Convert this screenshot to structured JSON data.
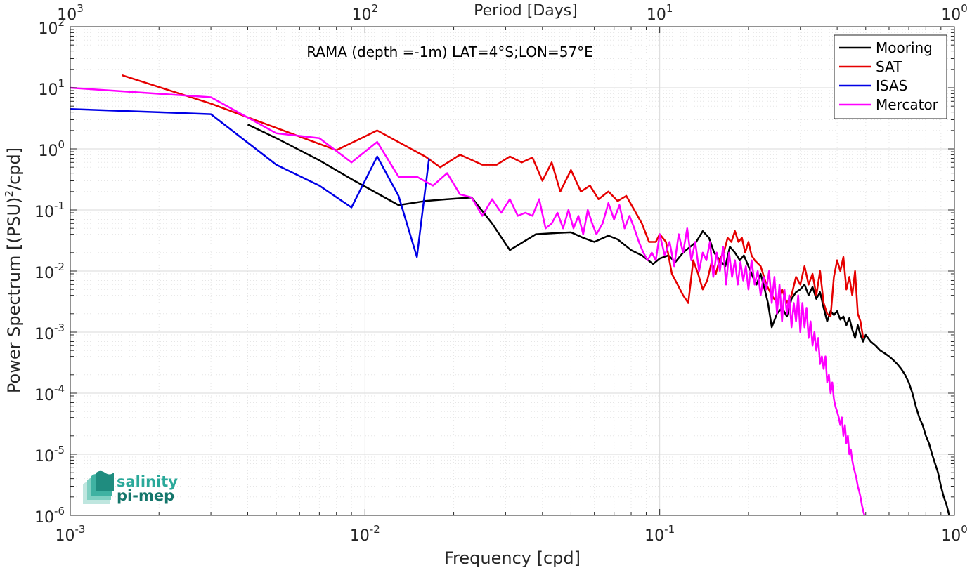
{
  "chart_data": {
    "type": "line",
    "title": "RAMA (depth =-1m) LAT=4°S;LON=57°E",
    "xlabel": "Frequency [cpd]",
    "ylabel_main": "Power Spectrum [(PSU)",
    "ylabel_exp": "2",
    "ylabel_tail": "/cpd]",
    "top_xlabel": "Period [Days]",
    "xscale": "log",
    "yscale": "log",
    "xlim": [
      0.001,
      1
    ],
    "ylim": [
      1e-06,
      100
    ],
    "grid": true,
    "legend_position": "top-right",
    "x_ticks": [
      {
        "base": "10",
        "exp": "-3"
      },
      {
        "base": "10",
        "exp": "-2"
      },
      {
        "base": "10",
        "exp": "-1"
      },
      {
        "base": "10",
        "exp": "0"
      }
    ],
    "top_ticks": [
      {
        "base": "10",
        "exp": "3"
      },
      {
        "base": "10",
        "exp": "2"
      },
      {
        "base": "10",
        "exp": "1"
      },
      {
        "base": "10",
        "exp": "0"
      }
    ],
    "y_ticks": [
      {
        "base": "10",
        "exp": "2"
      },
      {
        "base": "10",
        "exp": "1"
      },
      {
        "base": "10",
        "exp": "0"
      },
      {
        "base": "10",
        "exp": "-1"
      },
      {
        "base": "10",
        "exp": "-2"
      },
      {
        "base": "10",
        "exp": "-3"
      },
      {
        "base": "10",
        "exp": "-4"
      },
      {
        "base": "10",
        "exp": "-5"
      },
      {
        "base": "10",
        "exp": "-6"
      }
    ],
    "series": [
      {
        "name": "Mooring",
        "color": "#000000",
        "x": [
          0.004,
          0.005,
          0.007,
          0.009,
          0.013,
          0.016,
          0.019,
          0.023,
          0.027,
          0.031,
          0.038,
          0.045,
          0.05,
          0.055,
          0.06,
          0.067,
          0.072,
          0.08,
          0.087,
          0.095,
          0.1,
          0.107,
          0.113,
          0.12,
          0.127,
          0.133,
          0.14,
          0.147,
          0.153,
          0.16,
          0.167,
          0.173,
          0.18,
          0.187,
          0.193,
          0.2,
          0.207,
          0.213,
          0.22,
          0.227,
          0.233,
          0.24,
          0.25,
          0.26,
          0.27,
          0.28,
          0.29,
          0.3,
          0.31,
          0.32,
          0.33,
          0.34,
          0.35,
          0.36,
          0.37,
          0.38,
          0.39,
          0.4,
          0.41,
          0.42,
          0.43,
          0.44,
          0.45,
          0.46,
          0.47,
          0.48,
          0.49,
          0.5,
          0.52,
          0.54,
          0.56,
          0.58,
          0.6,
          0.62,
          0.64,
          0.66,
          0.68,
          0.7,
          0.72,
          0.74,
          0.76,
          0.78,
          0.8,
          0.82,
          0.84,
          0.86,
          0.88,
          0.9,
          0.92,
          0.94,
          0.96
        ],
        "y": [
          2.5,
          1.5,
          0.65,
          0.32,
          0.12,
          0.14,
          0.15,
          0.16,
          0.06,
          0.022,
          0.04,
          0.042,
          0.043,
          0.035,
          0.03,
          0.038,
          0.033,
          0.022,
          0.018,
          0.013,
          0.016,
          0.018,
          0.014,
          0.02,
          0.025,
          0.03,
          0.045,
          0.035,
          0.02,
          0.015,
          0.012,
          0.025,
          0.02,
          0.015,
          0.018,
          0.012,
          0.008,
          0.006,
          0.009,
          0.005,
          0.003,
          0.0012,
          0.002,
          0.0025,
          0.0018,
          0.0035,
          0.0045,
          0.005,
          0.006,
          0.004,
          0.0055,
          0.0035,
          0.0045,
          0.0025,
          0.0015,
          0.0022,
          0.0019,
          0.0022,
          0.0016,
          0.0018,
          0.0013,
          0.0017,
          0.0011,
          0.0008,
          0.0013,
          0.0009,
          0.0007,
          0.0009,
          0.0007,
          0.0006,
          0.0005,
          0.00045,
          0.0004,
          0.00035,
          0.0003,
          0.00025,
          0.0002,
          0.00015,
          0.0001,
          6e-05,
          4e-05,
          3e-05,
          2e-05,
          1.5e-05,
          1e-05,
          7e-06,
          5e-06,
          3e-06,
          2e-06,
          1.5e-06,
          1e-06
        ]
      },
      {
        "name": "SAT",
        "color": "#e60000",
        "x": [
          0.0015,
          0.003,
          0.005,
          0.008,
          0.011,
          0.016,
          0.018,
          0.021,
          0.025,
          0.028,
          0.031,
          0.034,
          0.037,
          0.04,
          0.043,
          0.046,
          0.05,
          0.054,
          0.058,
          0.062,
          0.067,
          0.072,
          0.077,
          0.082,
          0.087,
          0.092,
          0.097,
          0.1,
          0.105,
          0.11,
          0.115,
          0.12,
          0.125,
          0.13,
          0.135,
          0.14,
          0.145,
          0.15,
          0.155,
          0.16,
          0.165,
          0.17,
          0.175,
          0.18,
          0.185,
          0.19,
          0.195,
          0.2,
          0.205,
          0.21,
          0.22,
          0.23,
          0.24,
          0.25,
          0.26,
          0.27,
          0.28,
          0.29,
          0.3,
          0.31,
          0.32,
          0.33,
          0.34,
          0.35,
          0.36,
          0.37,
          0.38,
          0.39,
          0.4,
          0.41,
          0.42,
          0.43,
          0.44,
          0.45,
          0.46,
          0.47,
          0.48,
          0.49
        ],
        "y": [
          16.0,
          5.5,
          2.2,
          0.95,
          2.0,
          0.75,
          0.5,
          0.8,
          0.55,
          0.55,
          0.75,
          0.6,
          0.72,
          0.3,
          0.6,
          0.2,
          0.45,
          0.2,
          0.25,
          0.15,
          0.2,
          0.14,
          0.17,
          0.1,
          0.06,
          0.03,
          0.03,
          0.04,
          0.03,
          0.009,
          0.006,
          0.004,
          0.003,
          0.015,
          0.009,
          0.005,
          0.007,
          0.014,
          0.009,
          0.016,
          0.02,
          0.035,
          0.03,
          0.045,
          0.03,
          0.035,
          0.02,
          0.03,
          0.018,
          0.015,
          0.012,
          0.006,
          0.004,
          0.003,
          0.005,
          0.003,
          0.004,
          0.008,
          0.006,
          0.012,
          0.006,
          0.009,
          0.004,
          0.01,
          0.003,
          0.002,
          0.0018,
          0.008,
          0.015,
          0.01,
          0.017,
          0.005,
          0.008,
          0.004,
          0.01,
          0.002,
          0.0015,
          0.0008
        ]
      },
      {
        "name": "ISAS",
        "color": "#0000e6",
        "x": [
          0.001,
          0.003,
          0.005,
          0.007,
          0.009,
          0.011,
          0.013,
          0.015,
          0.0165
        ],
        "y": [
          4.5,
          3.7,
          0.55,
          0.25,
          0.11,
          0.75,
          0.17,
          0.017,
          0.7
        ]
      },
      {
        "name": "Mercator",
        "color": "#ff00ff",
        "x": [
          0.001,
          0.003,
          0.005,
          0.007,
          0.009,
          0.011,
          0.013,
          0.015,
          0.017,
          0.019,
          0.021,
          0.023,
          0.025,
          0.027,
          0.029,
          0.031,
          0.033,
          0.035,
          0.037,
          0.039,
          0.041,
          0.043,
          0.045,
          0.047,
          0.049,
          0.051,
          0.053,
          0.055,
          0.057,
          0.059,
          0.061,
          0.064,
          0.067,
          0.07,
          0.073,
          0.076,
          0.079,
          0.082,
          0.085,
          0.088,
          0.091,
          0.094,
          0.097,
          0.1,
          0.104,
          0.108,
          0.112,
          0.116,
          0.12,
          0.124,
          0.128,
          0.132,
          0.136,
          0.14,
          0.144,
          0.148,
          0.152,
          0.156,
          0.16,
          0.164,
          0.168,
          0.172,
          0.176,
          0.18,
          0.184,
          0.188,
          0.192,
          0.196,
          0.2,
          0.205,
          0.21,
          0.215,
          0.22,
          0.225,
          0.23,
          0.235,
          0.24,
          0.245,
          0.25,
          0.255,
          0.26,
          0.265,
          0.27,
          0.275,
          0.28,
          0.285,
          0.29,
          0.295,
          0.3,
          0.305,
          0.31,
          0.315,
          0.32,
          0.325,
          0.33,
          0.335,
          0.34,
          0.345,
          0.35,
          0.355,
          0.36,
          0.365,
          0.37,
          0.375,
          0.38,
          0.385,
          0.39,
          0.395,
          0.4,
          0.405,
          0.41,
          0.415,
          0.42,
          0.425,
          0.43,
          0.435,
          0.44,
          0.445,
          0.45,
          0.455,
          0.46,
          0.465,
          0.47,
          0.475,
          0.48,
          0.485,
          0.49,
          0.495,
          0.5
        ],
        "y": [
          10.0,
          7.0,
          1.8,
          1.5,
          0.6,
          1.3,
          0.35,
          0.35,
          0.25,
          0.4,
          0.18,
          0.16,
          0.08,
          0.15,
          0.09,
          0.15,
          0.08,
          0.09,
          0.08,
          0.15,
          0.05,
          0.06,
          0.09,
          0.05,
          0.1,
          0.05,
          0.08,
          0.04,
          0.1,
          0.06,
          0.04,
          0.06,
          0.13,
          0.07,
          0.12,
          0.05,
          0.08,
          0.05,
          0.03,
          0.02,
          0.015,
          0.02,
          0.015,
          0.04,
          0.018,
          0.03,
          0.012,
          0.04,
          0.02,
          0.05,
          0.015,
          0.03,
          0.01,
          0.02,
          0.015,
          0.03,
          0.008,
          0.02,
          0.01,
          0.025,
          0.006,
          0.02,
          0.008,
          0.015,
          0.006,
          0.014,
          0.007,
          0.012,
          0.005,
          0.015,
          0.006,
          0.01,
          0.004,
          0.008,
          0.005,
          0.01,
          0.003,
          0.008,
          0.002,
          0.006,
          0.0015,
          0.005,
          0.002,
          0.004,
          0.0012,
          0.003,
          0.0015,
          0.004,
          0.001,
          0.003,
          0.0012,
          0.0025,
          0.0008,
          0.0015,
          0.0006,
          0.001,
          0.0005,
          0.0008,
          0.0003,
          0.0004,
          0.00025,
          0.0004,
          0.00015,
          0.0002,
          0.0001,
          0.00015,
          8e-05,
          6e-05,
          5e-05,
          4e-05,
          3e-05,
          4e-05,
          2e-05,
          3e-05,
          1.5e-05,
          2e-05,
          1e-05,
          1.2e-05,
          8e-06,
          6e-06,
          5e-06,
          4e-06,
          3e-06,
          2.5e-06,
          2e-06,
          1.5e-06,
          1.2e-06,
          1e-06,
          1e-06
        ]
      }
    ]
  },
  "logo": {
    "line1": "salinity",
    "line2": "pi-mep",
    "color1": "#2aa99a",
    "color2": "#14766b"
  }
}
